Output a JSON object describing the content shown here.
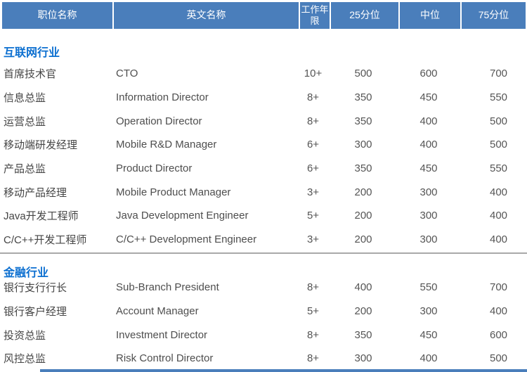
{
  "colors": {
    "header_bg": "#4A7EBB",
    "header_text": "#FFFFFF",
    "section_title": "#0C6FD0",
    "body_text": "#4A4A4A",
    "value_text": "#555555",
    "divider": "#A9A9A9"
  },
  "table": {
    "columns": [
      {
        "key": "name",
        "label": "职位名称"
      },
      {
        "key": "en",
        "label": "英文名称"
      },
      {
        "key": "years",
        "label": "工作年限"
      },
      {
        "key": "p25",
        "label": "25分位"
      },
      {
        "key": "median",
        "label": "中位"
      },
      {
        "key": "p75",
        "label": "75分位"
      }
    ],
    "sections": [
      {
        "title": "互联网行业",
        "rows": [
          {
            "name": "首席技术官",
            "en": "CTO",
            "years": "10+",
            "p25": "500",
            "median": "600",
            "p75": "700"
          },
          {
            "name": "信息总监",
            "en": "Information Director",
            "years": "8+",
            "p25": "350",
            "median": "450",
            "p75": "550"
          },
          {
            "name": "运营总监",
            "en": "Operation Director",
            "years": "8+",
            "p25": "350",
            "median": "400",
            "p75": "500"
          },
          {
            "name": "移动端研发经理",
            "en": "Mobile R&D Manager",
            "years": "6+",
            "p25": "300",
            "median": "400",
            "p75": "500"
          },
          {
            "name": "产品总监",
            "en": "Product Director",
            "years": "6+",
            "p25": "350",
            "median": "450",
            "p75": "550"
          },
          {
            "name": "移动产品经理",
            "en": "Mobile Product Manager",
            "years": "3+",
            "p25": "200",
            "median": "300",
            "p75": "400"
          },
          {
            "name": "Java开发工程师",
            "en": "Java Development Engineer",
            "years": "5+",
            "p25": "200",
            "median": "300",
            "p75": "400"
          },
          {
            "name": "C/C++开发工程师",
            "en": "C/C++ Development Engineer",
            "years": "3+",
            "p25": "200",
            "median": "300",
            "p75": "400"
          }
        ]
      },
      {
        "title": "金融行业",
        "rows": [
          {
            "name": "银行支行行长",
            "en": "Sub-Branch President",
            "years": "8+",
            "p25": "400",
            "median": "550",
            "p75": "700"
          },
          {
            "name": "银行客户经理",
            "en": "Account Manager",
            "years": "5+",
            "p25": "200",
            "median": "300",
            "p75": "400"
          },
          {
            "name": "投资总监",
            "en": "Investment Director",
            "years": "8+",
            "p25": "350",
            "median": "450",
            "p75": "600"
          },
          {
            "name": "风控总监",
            "en": "Risk Control Director",
            "years": "8+",
            "p25": "300",
            "median": "400",
            "p75": "500"
          }
        ]
      }
    ]
  }
}
